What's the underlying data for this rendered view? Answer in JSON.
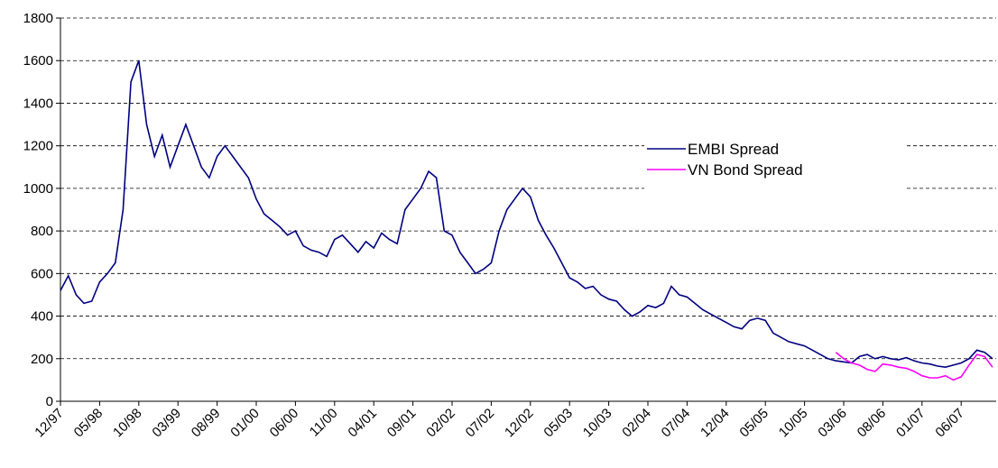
{
  "chart_data": {
    "type": "line",
    "categories": [
      "12/97",
      null,
      null,
      null,
      null,
      "05/98",
      null,
      null,
      null,
      null,
      "10/98",
      null,
      null,
      null,
      null,
      "03/99",
      null,
      null,
      null,
      null,
      "08/99",
      null,
      null,
      null,
      null,
      "01/00",
      null,
      null,
      null,
      null,
      "06/00",
      null,
      null,
      null,
      null,
      "11/00",
      null,
      null,
      null,
      null,
      "04/01",
      null,
      null,
      null,
      null,
      "09/01",
      null,
      null,
      null,
      null,
      "02/02",
      null,
      null,
      null,
      null,
      "07/02",
      null,
      null,
      null,
      null,
      "12/02",
      null,
      null,
      null,
      null,
      "05/03",
      null,
      null,
      null,
      null,
      "10/03",
      null,
      null,
      null,
      null,
      "02/04",
      null,
      null,
      null,
      null,
      "07/04",
      null,
      null,
      null,
      null,
      "12/04",
      null,
      null,
      null,
      null,
      "05/05",
      null,
      null,
      null,
      null,
      "10/05",
      null,
      null,
      null,
      null,
      "03/06",
      null,
      null,
      null,
      null,
      "08/06",
      null,
      null,
      null,
      null,
      "01/07",
      null,
      null,
      null,
      null,
      "06/07",
      null,
      null,
      null,
      null
    ],
    "series": [
      {
        "name": "EMBI Spread",
        "color": "#000080",
        "values": [
          520,
          590,
          500,
          460,
          470,
          560,
          600,
          650,
          900,
          1500,
          1600,
          1300,
          1150,
          1250,
          1100,
          1200,
          1300,
          1200,
          1100,
          1050,
          1150,
          1200,
          1150,
          1100,
          1050,
          950,
          880,
          850,
          820,
          780,
          800,
          730,
          710,
          700,
          680,
          760,
          780,
          740,
          700,
          750,
          720,
          790,
          760,
          740,
          900,
          950,
          1000,
          1080,
          1050,
          800,
          780,
          700,
          650,
          600,
          620,
          650,
          800,
          900,
          950,
          1000,
          960,
          850,
          780,
          720,
          650,
          580,
          560,
          530,
          540,
          500,
          480,
          470,
          430,
          400,
          420,
          450,
          440,
          460,
          540,
          500,
          490,
          460,
          430,
          410,
          390,
          370,
          350,
          340,
          380,
          390,
          380,
          320,
          300,
          280,
          270,
          260,
          240,
          220,
          200,
          190,
          185,
          180,
          210,
          220,
          200,
          210,
          200,
          195,
          205,
          190,
          180,
          175,
          165,
          160,
          170,
          180,
          200,
          240,
          230,
          200
        ]
      },
      {
        "name": "VN Bond Spread",
        "color": "#ff00ff",
        "values": [
          null,
          null,
          null,
          null,
          null,
          null,
          null,
          null,
          null,
          null,
          null,
          null,
          null,
          null,
          null,
          null,
          null,
          null,
          null,
          null,
          null,
          null,
          null,
          null,
          null,
          null,
          null,
          null,
          null,
          null,
          null,
          null,
          null,
          null,
          null,
          null,
          null,
          null,
          null,
          null,
          null,
          null,
          null,
          null,
          null,
          null,
          null,
          null,
          null,
          null,
          null,
          null,
          null,
          null,
          null,
          null,
          null,
          null,
          null,
          null,
          null,
          null,
          null,
          null,
          null,
          null,
          null,
          null,
          null,
          null,
          null,
          null,
          null,
          null,
          null,
          null,
          null,
          null,
          null,
          null,
          null,
          null,
          null,
          null,
          null,
          null,
          null,
          null,
          null,
          null,
          null,
          null,
          null,
          null,
          null,
          null,
          null,
          null,
          null,
          230,
          200,
          180,
          170,
          150,
          140,
          175,
          170,
          160,
          155,
          140,
          120,
          110,
          110,
          120,
          100,
          115,
          170,
          220,
          210,
          160
        ]
      }
    ],
    "ylim": [
      0,
      1800
    ],
    "yticks": [
      0,
      200,
      400,
      600,
      800,
      1000,
      1200,
      1400,
      1600,
      1800
    ],
    "grid": true
  }
}
